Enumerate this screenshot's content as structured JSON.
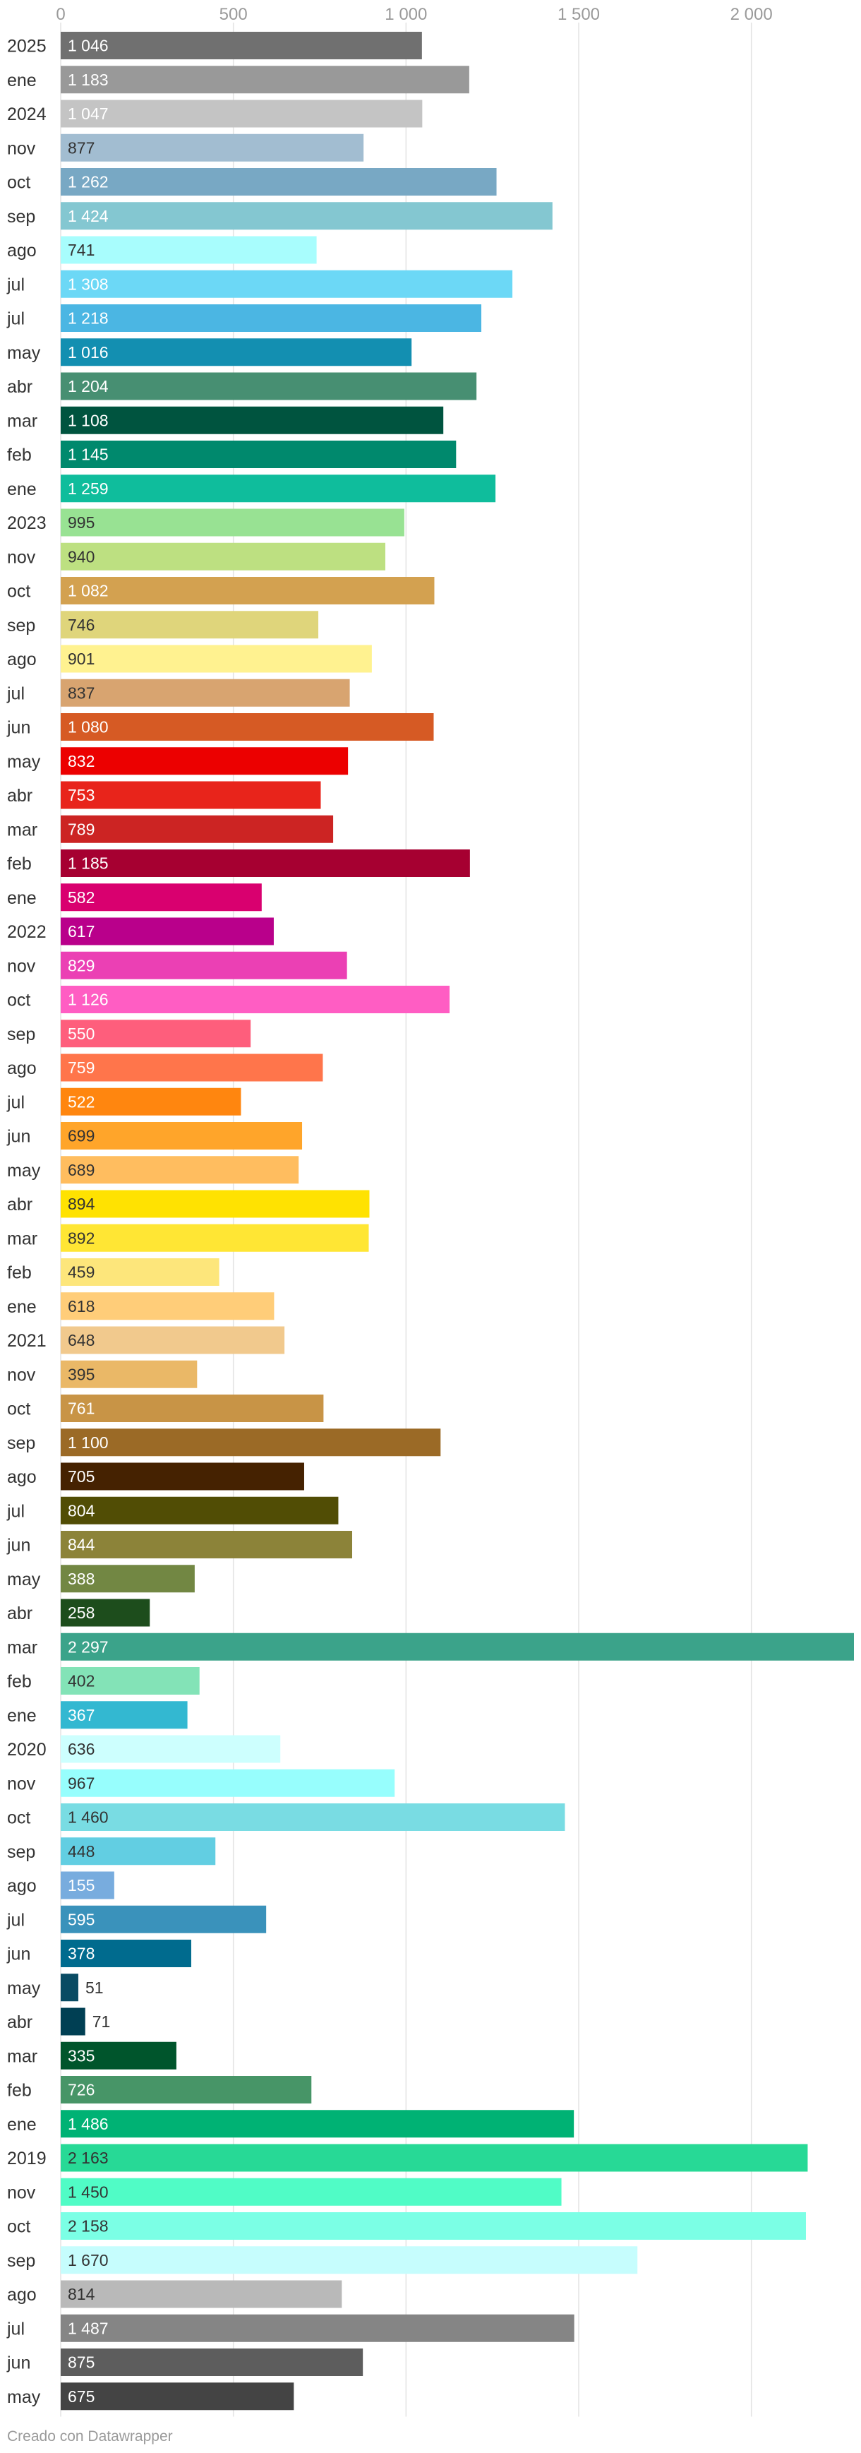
{
  "chart_data": {
    "type": "bar",
    "orientation": "horizontal",
    "title": "",
    "xlabel": "",
    "ylabel": "",
    "xlim": [
      0,
      2297
    ],
    "ticks": [
      0,
      500,
      1000,
      1500,
      2000
    ],
    "tick_labels": [
      "0",
      "500",
      "1 000",
      "1 500",
      "2 000"
    ],
    "grid": true,
    "categories": [
      "2025",
      "ene",
      "2024",
      "nov",
      "oct",
      "sep",
      "ago",
      "jul",
      "jul",
      "may",
      "abr",
      "mar",
      "feb",
      "ene",
      "2023",
      "nov",
      "oct",
      "sep",
      "ago",
      "jul",
      "jun",
      "may",
      "abr",
      "mar",
      "feb",
      "ene",
      "2022",
      "nov",
      "oct",
      "sep",
      "ago",
      "jul",
      "jun",
      "may",
      "abr",
      "mar",
      "feb",
      "ene",
      "2021",
      "nov",
      "oct",
      "sep",
      "ago",
      "jul",
      "jun",
      "may",
      "abr",
      "mar",
      "feb",
      "ene",
      "2020",
      "nov",
      "oct",
      "sep",
      "ago",
      "jul",
      "jun",
      "may",
      "abr",
      "mar",
      "feb",
      "ene",
      "2019",
      "nov",
      "oct",
      "sep",
      "ago",
      "jul",
      "jun",
      "may"
    ],
    "values": [
      1046,
      1183,
      1047,
      877,
      1262,
      1424,
      741,
      1308,
      1218,
      1016,
      1204,
      1108,
      1145,
      1259,
      995,
      940,
      1082,
      746,
      901,
      837,
      1080,
      832,
      753,
      789,
      1185,
      582,
      617,
      829,
      1126,
      550,
      759,
      522,
      699,
      689,
      894,
      892,
      459,
      618,
      648,
      395,
      761,
      1100,
      705,
      804,
      844,
      388,
      258,
      2297,
      402,
      367,
      636,
      967,
      1460,
      448,
      155,
      595,
      378,
      51,
      71,
      335,
      726,
      1486,
      2163,
      1450,
      2158,
      1670,
      814,
      1487,
      875,
      675
    ],
    "value_labels": [
      "1 046",
      "1 183",
      "1 047",
      "877",
      "1 262",
      "1 424",
      "741",
      "1 308",
      "1 218",
      "1 016",
      "1 204",
      "1 108",
      "1 145",
      "1 259",
      "995",
      "940",
      "1 082",
      "746",
      "901",
      "837",
      "1 080",
      "832",
      "753",
      "789",
      "1 185",
      "582",
      "617",
      "829",
      "1 126",
      "550",
      "759",
      "522",
      "699",
      "689",
      "894",
      "892",
      "459",
      "618",
      "648",
      "395",
      "761",
      "1 100",
      "705",
      "804",
      "844",
      "388",
      "258",
      "2 297",
      "402",
      "367",
      "636",
      "967",
      "1 460",
      "448",
      "155",
      "595",
      "378",
      "51",
      "71",
      "335",
      "726",
      "1 486",
      "2 163",
      "1 450",
      "2 158",
      "1 670",
      "814",
      "1 487",
      "875",
      "675"
    ],
    "colors": [
      "#707070",
      "#999999",
      "#c4c4c4",
      "#a2bdd1",
      "#78a8c4",
      "#84c7d1",
      "#a8fdfd",
      "#6cd8f6",
      "#4bb6e3",
      "#138fb1",
      "#478f72",
      "#00543f",
      "#00896d",
      "#0fbd9c",
      "#98e293",
      "#bde081",
      "#d3a150",
      "#dfd57b",
      "#fff290",
      "#d8a470",
      "#d65a24",
      "#ec0000",
      "#e8241b",
      "#cc2423",
      "#a60031",
      "#d9006f",
      "#b9008b",
      "#eb40b4",
      "#ff5dc3",
      "#fe5e7c",
      "#ff754b",
      "#ff860f",
      "#ffa52a",
      "#ffbd5f",
      "#ffe201",
      "#ffe634",
      "#fde67b",
      "#ffcd79",
      "#f1c98d",
      "#eab867",
      "#c89446",
      "#9b6a26",
      "#452201",
      "#514d05",
      "#8c8339",
      "#728743",
      "#1d4d1c",
      "#3ba38a",
      "#83e3b7",
      "#33b8d1",
      "#cdfffe",
      "#97fefd",
      "#79dce3",
      "#62cee2",
      "#78acde",
      "#3a92bb",
      "#006b8e",
      "#094b63",
      "#003f53",
      "#00552c",
      "#479567",
      "#00b274",
      "#27d996",
      "#50fcc6",
      "#7bffe5",
      "#c6fdfd",
      "#b9b9b9",
      "#858585",
      "#5d5d5d",
      "#444444"
    ],
    "label_colors": [
      "#ffffff",
      "#ffffff",
      "#ffffff",
      "#333333",
      "#ffffff",
      "#ffffff",
      "#333333",
      "#ffffff",
      "#ffffff",
      "#ffffff",
      "#ffffff",
      "#ffffff",
      "#ffffff",
      "#ffffff",
      "#333333",
      "#333333",
      "#ffffff",
      "#333333",
      "#333333",
      "#333333",
      "#ffffff",
      "#ffffff",
      "#ffffff",
      "#ffffff",
      "#ffffff",
      "#ffffff",
      "#ffffff",
      "#ffffff",
      "#ffffff",
      "#ffffff",
      "#ffffff",
      "#ffffff",
      "#333333",
      "#333333",
      "#333333",
      "#333333",
      "#333333",
      "#333333",
      "#333333",
      "#333333",
      "#ffffff",
      "#ffffff",
      "#ffffff",
      "#ffffff",
      "#ffffff",
      "#ffffff",
      "#ffffff",
      "#ffffff",
      "#333333",
      "#ffffff",
      "#333333",
      "#333333",
      "#333333",
      "#333333",
      "#ffffff",
      "#ffffff",
      "#ffffff",
      "#333333",
      "#333333",
      "#ffffff",
      "#ffffff",
      "#ffffff",
      "#333333",
      "#333333",
      "#333333",
      "#333333",
      "#333333",
      "#ffffff",
      "#ffffff",
      "#ffffff"
    ]
  },
  "footer": {
    "credit": "Creado con Datawrapper"
  }
}
